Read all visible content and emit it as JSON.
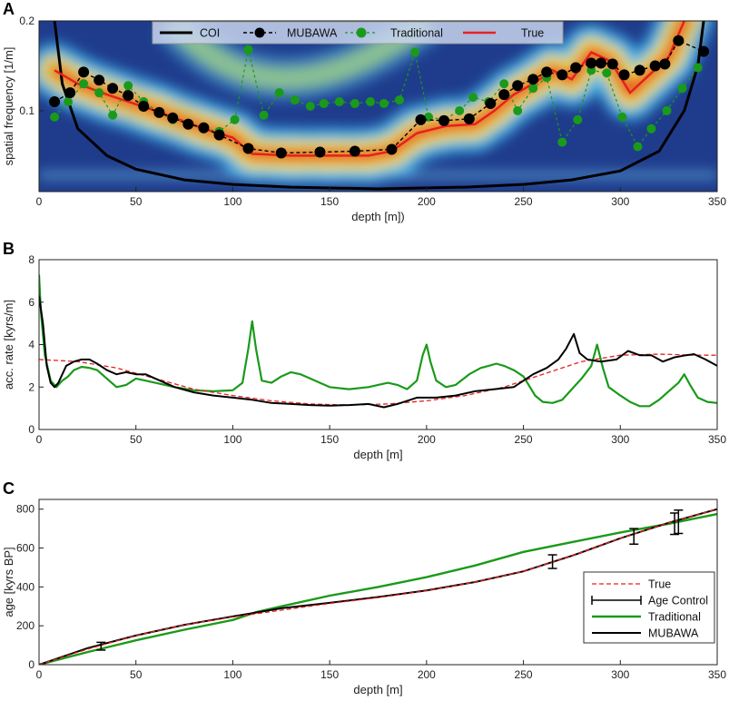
{
  "colors": {
    "mubawa": "#000000",
    "traditional": "#1a9a1a",
    "true": "#e82020",
    "coi": "#000000",
    "age_control": "#000000"
  },
  "chart_data": [
    {
      "panel": "A",
      "type": "heatmap",
      "xlabel": "depth [m])",
      "ylabel": "spatial frequency [1/m]",
      "xlim": [
        0,
        350
      ],
      "ylim": [
        0.01,
        0.2
      ],
      "xticks": [
        "0",
        "50",
        "100",
        "150",
        "200",
        "250",
        "300",
        "350"
      ],
      "yticks": [
        "0.1",
        "0.2"
      ],
      "legend": [
        "COI",
        "MUBAWA",
        "Traditional",
        "True"
      ],
      "legend_placement": "top-center",
      "series": [
        {
          "name": "COI",
          "x": [
            8,
            12,
            20,
            35,
            50,
            75,
            100,
            130,
            175,
            220,
            250,
            275,
            300,
            320,
            333,
            340,
            343
          ],
          "y": [
            0.2,
            0.13,
            0.08,
            0.05,
            0.035,
            0.023,
            0.018,
            0.015,
            0.013,
            0.015,
            0.018,
            0.023,
            0.033,
            0.055,
            0.1,
            0.15,
            0.2
          ]
        },
        {
          "name": "MUBAWA",
          "x": [
            8,
            16,
            23,
            31,
            38,
            46,
            54,
            62,
            69,
            77,
            85,
            93,
            108,
            125,
            145,
            163,
            182,
            197,
            209,
            222,
            233,
            240,
            247,
            255,
            262,
            270,
            277,
            285,
            290,
            296,
            302,
            310,
            318,
            323,
            330,
            343
          ],
          "y": [
            0.11,
            0.12,
            0.143,
            0.134,
            0.125,
            0.117,
            0.105,
            0.098,
            0.092,
            0.085,
            0.081,
            0.073,
            0.058,
            0.053,
            0.054,
            0.055,
            0.057,
            0.09,
            0.089,
            0.091,
            0.108,
            0.118,
            0.128,
            0.135,
            0.143,
            0.14,
            0.148,
            0.153,
            0.153,
            0.152,
            0.14,
            0.145,
            0.15,
            0.152,
            0.178,
            0.166
          ]
        },
        {
          "name": "Traditional",
          "x": [
            8,
            15,
            23,
            31,
            38,
            46,
            54,
            62,
            69,
            77,
            85,
            93,
            101,
            108,
            116,
            124,
            132,
            140,
            147,
            155,
            163,
            171,
            178,
            186,
            194,
            201,
            209,
            217,
            224,
            232,
            240,
            247,
            255,
            262,
            270,
            278,
            285,
            293,
            301,
            309,
            316,
            324,
            332,
            340
          ],
          "y": [
            0.093,
            0.11,
            0.13,
            0.12,
            0.095,
            0.128,
            0.11,
            0.098,
            0.09,
            0.086,
            0.08,
            0.077,
            0.09,
            0.168,
            0.095,
            0.12,
            0.112,
            0.105,
            0.108,
            0.11,
            0.108,
            0.11,
            0.108,
            0.112,
            0.165,
            0.093,
            0.09,
            0.1,
            0.115,
            0.11,
            0.13,
            0.1,
            0.125,
            0.137,
            0.065,
            0.09,
            0.145,
            0.142,
            0.093,
            0.06,
            0.08,
            0.1,
            0.125,
            0.148
          ]
        },
        {
          "name": "True",
          "x": [
            8,
            20,
            35,
            60,
            85,
            100,
            110,
            130,
            150,
            170,
            182,
            195,
            210,
            225,
            235,
            245,
            255,
            265,
            275,
            285,
            295,
            305,
            315,
            325,
            334
          ],
          "y": [
            0.145,
            0.13,
            0.118,
            0.1,
            0.08,
            0.07,
            0.052,
            0.05,
            0.05,
            0.05,
            0.055,
            0.075,
            0.083,
            0.085,
            0.1,
            0.118,
            0.13,
            0.145,
            0.135,
            0.165,
            0.155,
            0.12,
            0.14,
            0.16,
            0.205
          ]
        }
      ]
    },
    {
      "panel": "B",
      "type": "line",
      "xlabel": "depth [m]",
      "ylabel": "acc. rate [kyrs/m]",
      "xlim": [
        0,
        350
      ],
      "ylim": [
        0,
        8
      ],
      "xticks": [
        "0",
        "50",
        "100",
        "150",
        "200",
        "250",
        "300",
        "350"
      ],
      "yticks": [
        "0",
        "2",
        "4",
        "6",
        "8"
      ],
      "series": [
        {
          "name": "True",
          "x": [
            0,
            20,
            40,
            60,
            80,
            100,
            120,
            140,
            160,
            180,
            200,
            220,
            240,
            260,
            280,
            300,
            320,
            340,
            350
          ],
          "y": [
            3.3,
            3.2,
            2.9,
            2.4,
            1.9,
            1.6,
            1.35,
            1.2,
            1.15,
            1.2,
            1.35,
            1.6,
            2.0,
            2.6,
            3.2,
            3.5,
            3.55,
            3.5,
            3.5
          ]
        },
        {
          "name": "MUBAWA",
          "x": [
            0,
            2,
            4,
            6,
            8,
            10,
            14,
            18,
            22,
            26,
            30,
            35,
            40,
            45,
            50,
            55,
            60,
            70,
            80,
            90,
            100,
            110,
            120,
            130,
            140,
            150,
            160,
            170,
            178,
            185,
            195,
            205,
            215,
            225,
            235,
            245,
            255,
            262,
            268,
            272,
            276,
            279,
            283,
            290,
            298,
            304,
            310,
            316,
            322,
            328,
            334,
            338,
            344,
            350
          ],
          "y": [
            6.3,
            5.0,
            3.0,
            2.2,
            2.0,
            2.2,
            3.0,
            3.2,
            3.3,
            3.3,
            3.1,
            2.8,
            2.6,
            2.7,
            2.6,
            2.6,
            2.4,
            2.0,
            1.75,
            1.6,
            1.5,
            1.4,
            1.25,
            1.2,
            1.15,
            1.12,
            1.15,
            1.2,
            1.05,
            1.2,
            1.5,
            1.5,
            1.6,
            1.8,
            1.9,
            2.0,
            2.6,
            2.9,
            3.3,
            3.8,
            4.5,
            3.6,
            3.3,
            3.2,
            3.3,
            3.7,
            3.5,
            3.5,
            3.2,
            3.4,
            3.5,
            3.55,
            3.3,
            3.0
          ]
        },
        {
          "name": "Traditional",
          "x": [
            0,
            1,
            3,
            6,
            9,
            12,
            15,
            18,
            22,
            26,
            30,
            35,
            40,
            45,
            50,
            55,
            60,
            70,
            80,
            90,
            100,
            105,
            108,
            110,
            112,
            115,
            120,
            125,
            130,
            135,
            140,
            145,
            150,
            160,
            170,
            180,
            185,
            190,
            195,
            198,
            200,
            202,
            205,
            210,
            215,
            222,
            228,
            232,
            236,
            240,
            245,
            250,
            256,
            260,
            265,
            270,
            275,
            280,
            285,
            288,
            291,
            294,
            300,
            305,
            310,
            315,
            320,
            325,
            330,
            333,
            336,
            340,
            345,
            350
          ],
          "y": [
            7.3,
            5.5,
            3.5,
            2.3,
            2.0,
            2.3,
            2.5,
            2.8,
            2.95,
            2.9,
            2.8,
            2.4,
            2.0,
            2.1,
            2.4,
            2.3,
            2.2,
            2.0,
            1.85,
            1.8,
            1.85,
            2.2,
            3.8,
            5.1,
            3.8,
            2.3,
            2.2,
            2.5,
            2.7,
            2.6,
            2.4,
            2.2,
            2.0,
            1.9,
            2.0,
            2.2,
            2.1,
            1.9,
            2.3,
            3.5,
            4.0,
            3.2,
            2.3,
            2.0,
            2.1,
            2.6,
            2.9,
            3.0,
            3.1,
            3.0,
            2.8,
            2.5,
            1.6,
            1.3,
            1.25,
            1.4,
            1.9,
            2.4,
            3.0,
            4.0,
            2.9,
            2.0,
            1.6,
            1.3,
            1.1,
            1.1,
            1.4,
            1.8,
            2.2,
            2.6,
            2.1,
            1.5,
            1.3,
            1.25
          ]
        }
      ]
    },
    {
      "panel": "C",
      "type": "line",
      "xlabel": "depth [m]",
      "ylabel": "age [kyrs BP]",
      "xlim": [
        0,
        350
      ],
      "ylim": [
        0,
        850
      ],
      "xticks": [
        "0",
        "50",
        "100",
        "150",
        "200",
        "250",
        "300",
        "350"
      ],
      "yticks": [
        "0",
        "200",
        "400",
        "600",
        "800"
      ],
      "legend": [
        "True",
        "Age Control",
        "Traditional",
        "MUBAWA"
      ],
      "legend_placement": "bottom-right",
      "series": [
        {
          "name": "True",
          "x": [
            0,
            25,
            50,
            75,
            100,
            125,
            150,
            175,
            200,
            225,
            250,
            275,
            300,
            325,
            350
          ],
          "y": [
            0,
            80,
            150,
            205,
            245,
            280,
            315,
            345,
            380,
            425,
            480,
            560,
            650,
            730,
            800
          ]
        },
        {
          "name": "Traditional",
          "x": [
            0,
            25,
            50,
            75,
            100,
            112,
            125,
            150,
            175,
            200,
            225,
            250,
            275,
            300,
            325,
            350
          ],
          "y": [
            0,
            65,
            125,
            180,
            230,
            270,
            300,
            355,
            400,
            450,
            510,
            580,
            630,
            680,
            725,
            775
          ]
        },
        {
          "name": "MUBAWA",
          "x": [
            0,
            25,
            50,
            75,
            100,
            112,
            125,
            150,
            175,
            200,
            225,
            250,
            275,
            300,
            325,
            350
          ],
          "y": [
            0,
            85,
            150,
            205,
            248,
            268,
            290,
            318,
            348,
            382,
            425,
            480,
            560,
            650,
            730,
            800
          ]
        },
        {
          "name": "Age Control",
          "points": [
            {
              "x": 32,
              "y": 95,
              "err": 20
            },
            {
              "x": 265,
              "y": 530,
              "err": 35
            },
            {
              "x": 307,
              "y": 660,
              "err": 40
            },
            {
              "x": 328,
              "y": 725,
              "err": 55
            },
            {
              "x": 330,
              "y": 735,
              "err": 60
            }
          ]
        }
      ]
    }
  ]
}
